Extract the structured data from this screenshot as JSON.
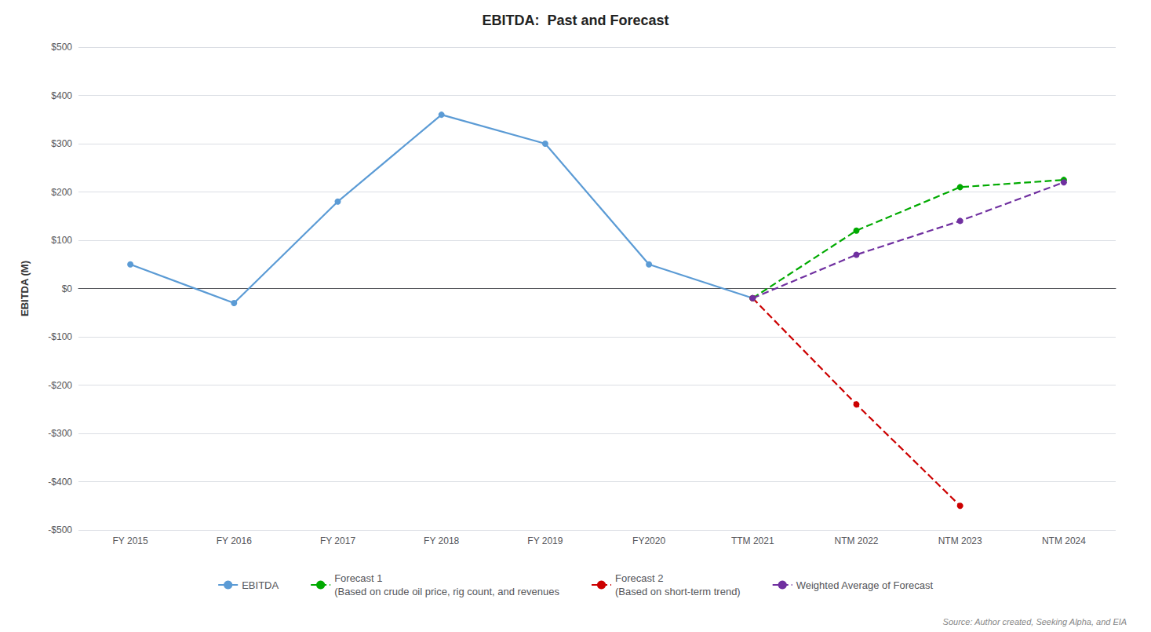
{
  "chart_data": {
    "type": "line",
    "title": "EBITDA:  Past and Forecast",
    "y_label": "EBITDA (M)",
    "categories": [
      "FY 2015",
      "FY 2016",
      "FY 2017",
      "FY 2018",
      "FY 2019",
      "FY2020",
      "TTM 2021",
      "NTM 2022",
      "NTM 2023",
      "NTM 2024"
    ],
    "series": [
      {
        "name": "EBITDA",
        "color": "#5b9bd5",
        "line_style": "solid",
        "marker": "circle",
        "values": [
          50,
          -30,
          180,
          360,
          300,
          50,
          -20,
          null,
          null,
          null
        ]
      },
      {
        "name": "Forecast 1\n(Based on crude oil price, rig count, and revenues",
        "color": "#00aa00",
        "line_style": "dashed",
        "marker": "circle",
        "values": [
          null,
          null,
          null,
          null,
          null,
          null,
          -20,
          120,
          210,
          225
        ]
      },
      {
        "name": "Forecast 2\n(Based on short-term trend)",
        "color": "#cc0000",
        "line_style": "dashed",
        "marker": "circle",
        "values": [
          null,
          null,
          null,
          null,
          null,
          null,
          -20,
          -240,
          -450,
          null
        ]
      },
      {
        "name": "Weighted Average of Forecast",
        "color": "#7030a0",
        "line_style": "dashed",
        "marker": "circle",
        "values": [
          null,
          null,
          null,
          null,
          null,
          null,
          -20,
          70,
          140,
          220
        ]
      }
    ],
    "ylim": [
      -500,
      500
    ],
    "yticks": [
      {
        "value": -500,
        "label": "-$500"
      },
      {
        "value": -400,
        "label": "-$400"
      },
      {
        "value": -300,
        "label": "-$300"
      },
      {
        "value": -200,
        "label": "-$200"
      },
      {
        "value": -100,
        "label": "-$100"
      },
      {
        "value": 0,
        "label": "$0"
      },
      {
        "value": 100,
        "label": "$100"
      },
      {
        "value": 200,
        "label": "$200"
      },
      {
        "value": 300,
        "label": "$300"
      },
      {
        "value": 400,
        "label": "$400"
      },
      {
        "value": 500,
        "label": "$500"
      }
    ],
    "grid": true,
    "legend": "bottom",
    "annotations": [
      "Source: Author created, Seeking Alpha, and EIA"
    ]
  }
}
